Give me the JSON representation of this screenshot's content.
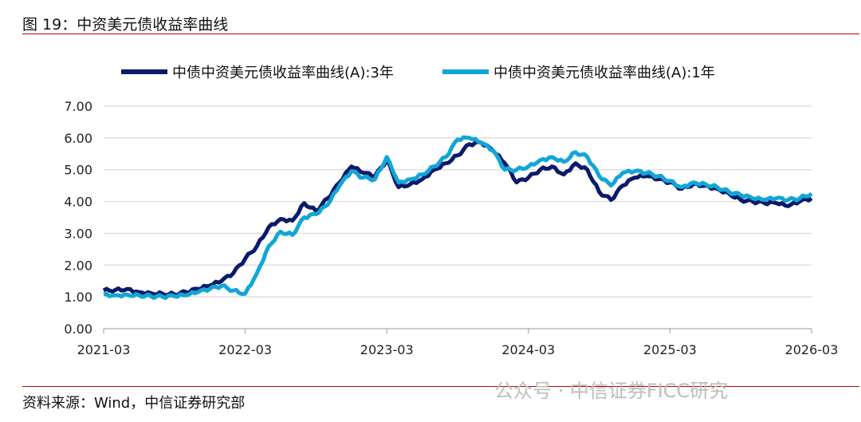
{
  "header": {
    "title": "图 19：中资美元债收益率曲线"
  },
  "footer": {
    "source": "资料来源：Wind，中信证券研究部",
    "watermark": "公众号 · 中信证券FICC研究"
  },
  "chart_data": {
    "type": "line",
    "title": "",
    "xlabel": "",
    "ylabel": "",
    "ylim": [
      0,
      7
    ],
    "yticks": [
      "0.00",
      "1.00",
      "2.00",
      "3.00",
      "4.00",
      "5.00",
      "6.00",
      "7.00"
    ],
    "xticks": [
      "2021-03",
      "2022-03",
      "2023-03",
      "2024-03",
      "2025-03",
      "2026-03"
    ],
    "grid": "horizontal",
    "legend": "top",
    "x": [
      "2021-03",
      "2021-04",
      "2021-05",
      "2021-06",
      "2021-07",
      "2021-08",
      "2021-09",
      "2021-10",
      "2021-11",
      "2021-12",
      "2022-01",
      "2022-02",
      "2022-03",
      "2022-04",
      "2022-05",
      "2022-06",
      "2022-07",
      "2022-08",
      "2022-09",
      "2022-10",
      "2022-11",
      "2022-12",
      "2023-01",
      "2023-02",
      "2023-03",
      "2023-04",
      "2023-05",
      "2023-06",
      "2023-07",
      "2023-08",
      "2023-09",
      "2023-10",
      "2023-11",
      "2023-12",
      "2024-01",
      "2024-02",
      "2024-03",
      "2024-04",
      "2024-05",
      "2024-06",
      "2024-07",
      "2024-08",
      "2024-09",
      "2024-10",
      "2024-11",
      "2024-12",
      "2025-01",
      "2025-02",
      "2025-03",
      "2025-04",
      "2025-05",
      "2025-06",
      "2025-07",
      "2025-08",
      "2025-09",
      "2025-10",
      "2025-11",
      "2025-12",
      "2026-01",
      "2026-02",
      "2026-03"
    ],
    "series": [
      {
        "name": "中债中资美元债收益率曲线(A):3年",
        "color": "#0c1a6b",
        "values": [
          1.2,
          1.22,
          1.25,
          1.15,
          1.12,
          1.1,
          1.08,
          1.15,
          1.25,
          1.35,
          1.5,
          1.75,
          2.2,
          2.6,
          3.2,
          3.45,
          3.4,
          3.95,
          3.7,
          4.1,
          4.6,
          5.1,
          4.9,
          4.8,
          5.3,
          4.45,
          4.55,
          4.7,
          5.0,
          5.2,
          5.45,
          5.8,
          5.85,
          5.6,
          5.2,
          4.6,
          4.75,
          5.0,
          5.1,
          4.85,
          5.2,
          5.0,
          4.3,
          4.05,
          4.5,
          4.75,
          4.8,
          4.7,
          4.6,
          4.4,
          4.55,
          4.5,
          4.4,
          4.25,
          4.05,
          4.0,
          3.95,
          3.95,
          3.85,
          4.0,
          4.1
        ]
      },
      {
        "name": "中债中资美元债收益率曲线(A):1年",
        "color": "#12a6d6",
        "values": [
          1.08,
          1.05,
          1.07,
          1.05,
          1.02,
          1.0,
          1.02,
          1.05,
          1.15,
          1.25,
          1.35,
          1.2,
          1.1,
          1.75,
          2.6,
          3.05,
          2.95,
          3.5,
          3.6,
          3.9,
          4.5,
          4.95,
          4.75,
          4.7,
          5.4,
          4.6,
          4.7,
          4.85,
          5.1,
          5.4,
          5.95,
          6.0,
          5.85,
          5.6,
          5.0,
          5.0,
          5.1,
          5.3,
          5.4,
          5.25,
          5.55,
          5.4,
          4.8,
          4.5,
          4.9,
          4.95,
          4.9,
          4.8,
          4.65,
          4.45,
          4.6,
          4.55,
          4.45,
          4.3,
          4.2,
          4.1,
          4.05,
          4.1,
          4.05,
          4.1,
          4.25
        ]
      }
    ]
  }
}
